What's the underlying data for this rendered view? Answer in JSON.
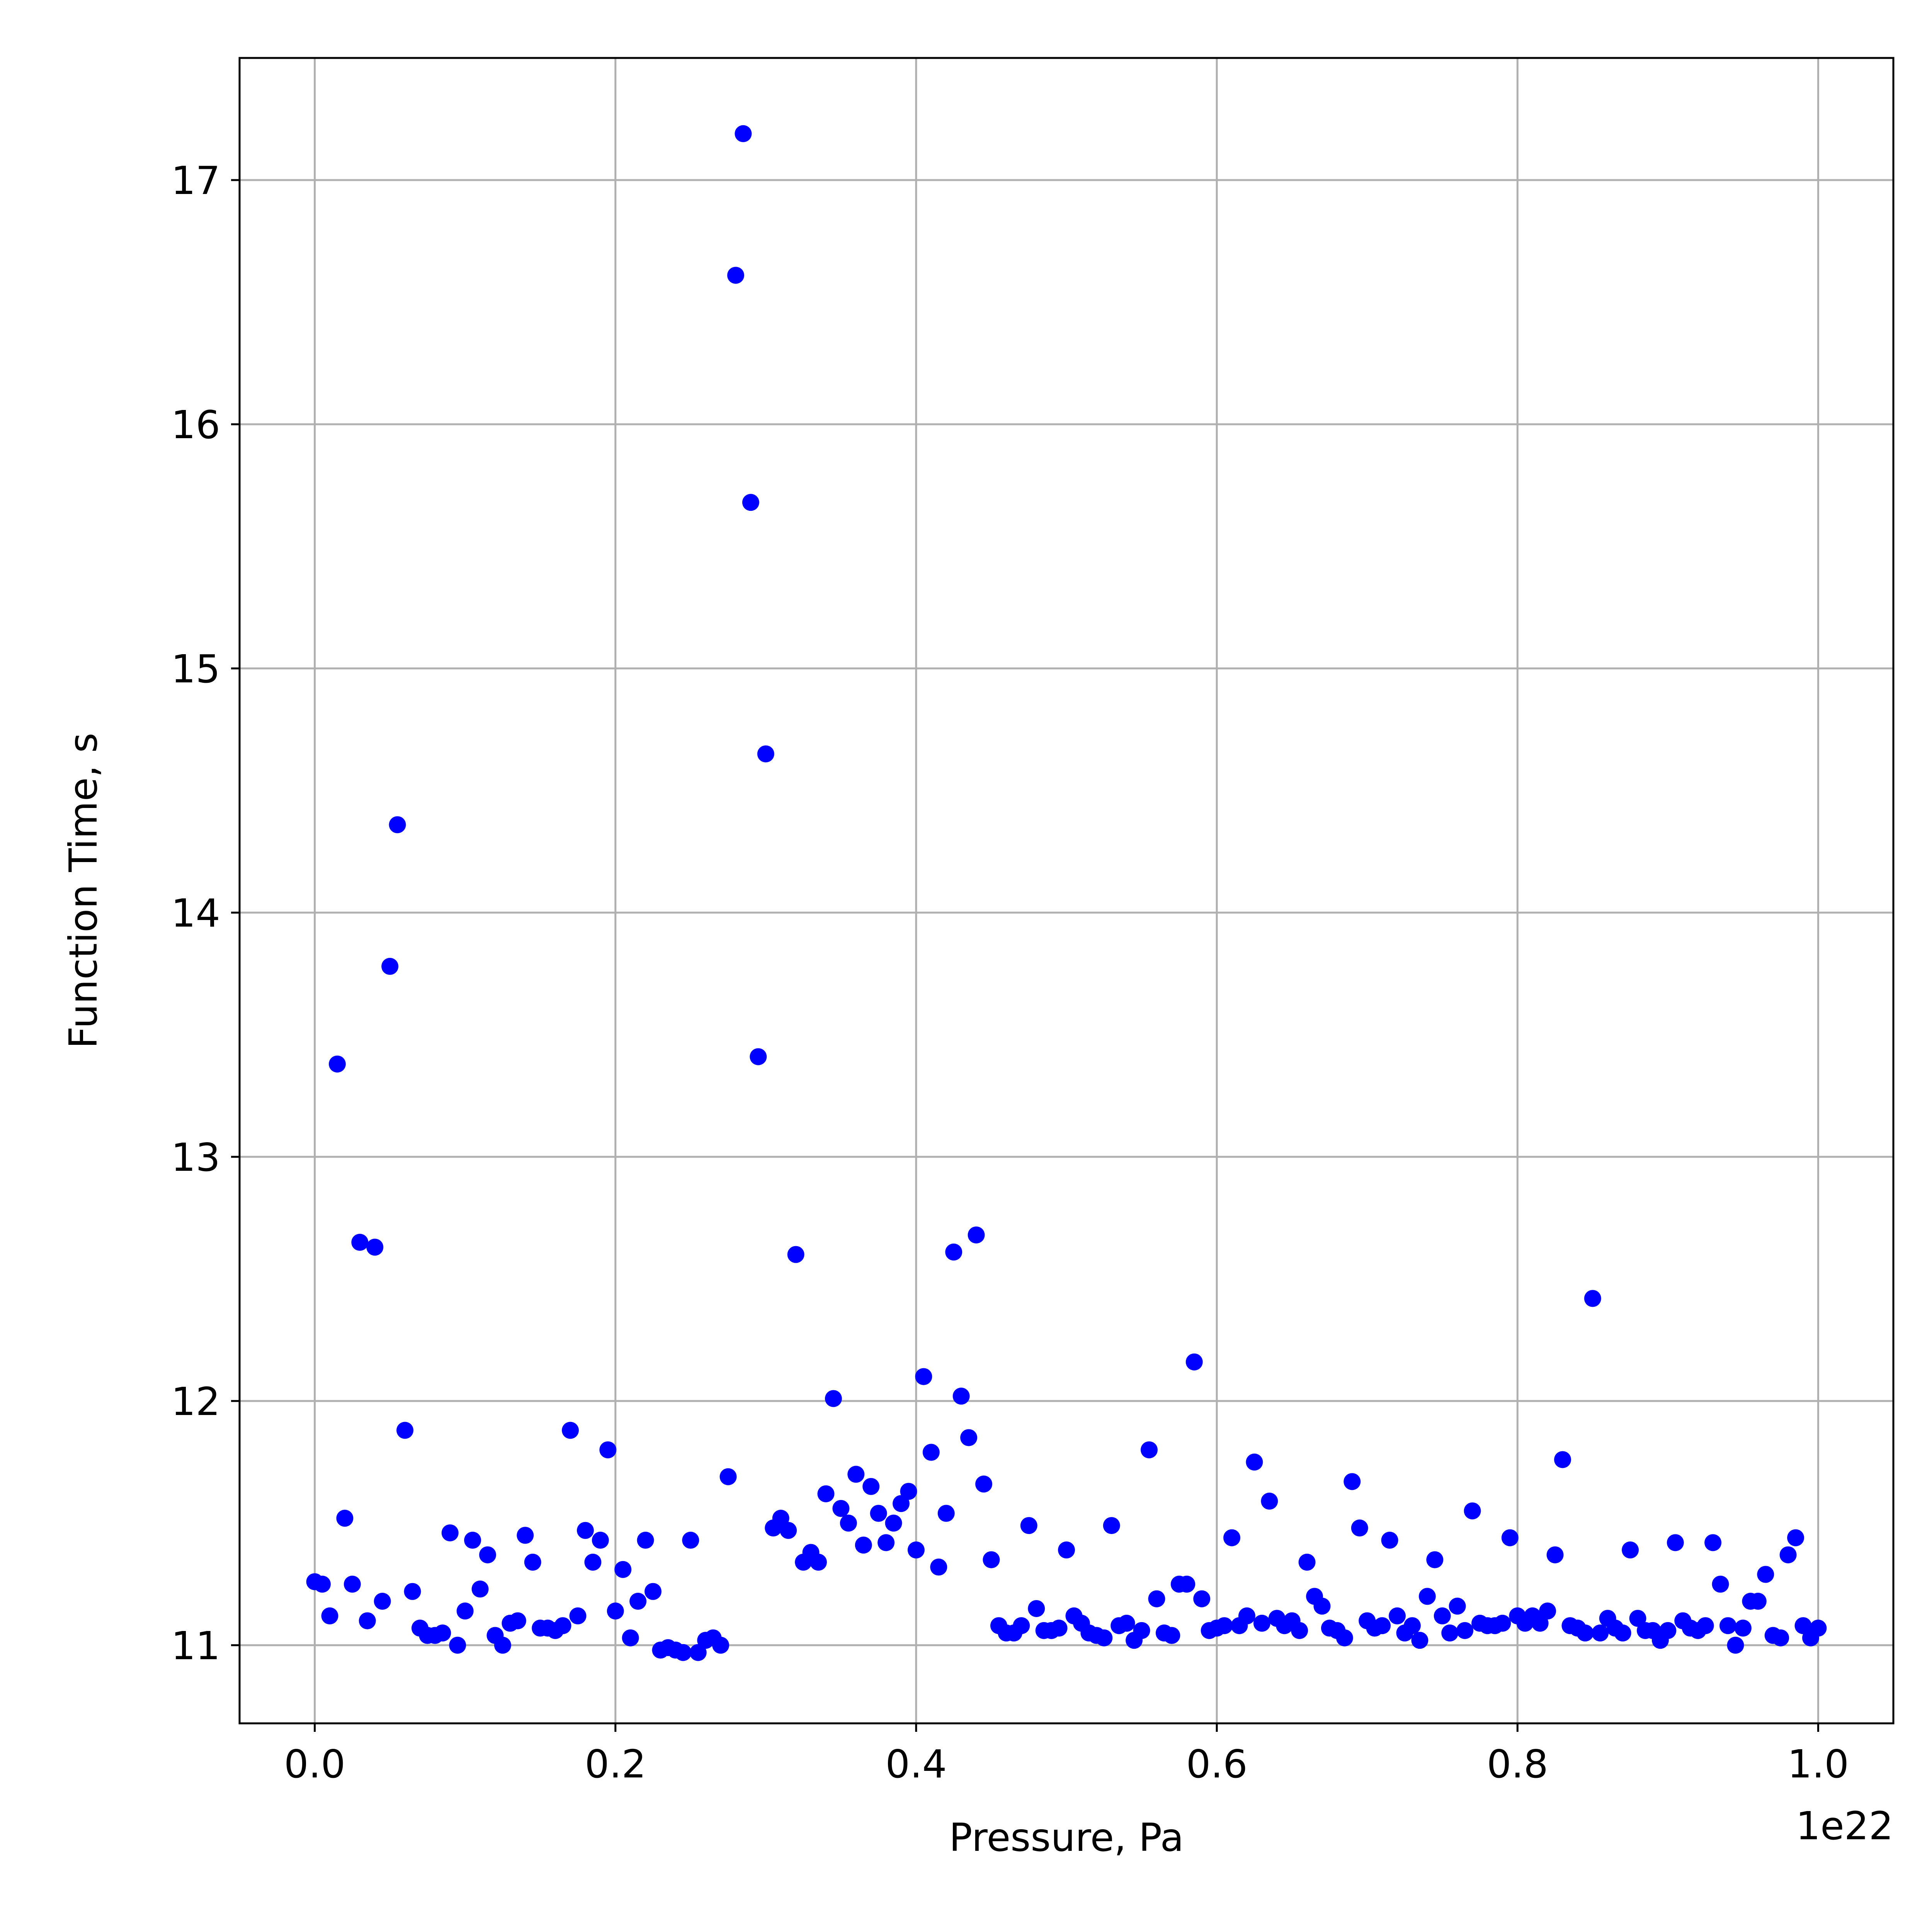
{
  "chart_data": {
    "type": "scatter",
    "xlabel": "Pressure, Pa",
    "ylabel": "Function Time, s",
    "x_offset_label": "1e22",
    "xlim": [
      -0.05,
      1.05
    ],
    "ylim": [
      10.68,
      17.5
    ],
    "x_ticks": [
      0.0,
      0.2,
      0.4,
      0.6,
      0.8,
      1.0
    ],
    "x_tick_labels": [
      "0.0",
      "0.2",
      "0.4",
      "0.6",
      "0.8",
      "1.0"
    ],
    "y_ticks": [
      11,
      12,
      13,
      14,
      15,
      16,
      17
    ],
    "y_tick_labels": [
      "11",
      "12",
      "13",
      "14",
      "15",
      "16",
      "17"
    ],
    "grid": true,
    "legend": "none",
    "marker_color": "#0000ff",
    "grid_color": "#b0b0b0",
    "series": [
      {
        "x": [
          0.0,
          0.005,
          0.01,
          0.015,
          0.02,
          0.025,
          0.03,
          0.035,
          0.04,
          0.045,
          0.05,
          0.055,
          0.06,
          0.065,
          0.07,
          0.075,
          0.08,
          0.085,
          0.09,
          0.095,
          0.1,
          0.105,
          0.11,
          0.115,
          0.12,
          0.125,
          0.13,
          0.135,
          0.14,
          0.145,
          0.15,
          0.155,
          0.16,
          0.165,
          0.17,
          0.175,
          0.18,
          0.185,
          0.19,
          0.195,
          0.2,
          0.205,
          0.21,
          0.215,
          0.22,
          0.225,
          0.23,
          0.235,
          0.24,
          0.245,
          0.25,
          0.255,
          0.26,
          0.265,
          0.27,
          0.275,
          0.28,
          0.285,
          0.29,
          0.295,
          0.3,
          0.305,
          0.31,
          0.315,
          0.32,
          0.325,
          0.33,
          0.335,
          0.34,
          0.345,
          0.35,
          0.355,
          0.36,
          0.365,
          0.37,
          0.375,
          0.38,
          0.385,
          0.39,
          0.395,
          0.4,
          0.405,
          0.41,
          0.415,
          0.42,
          0.425,
          0.43,
          0.435,
          0.44,
          0.445,
          0.45,
          0.455,
          0.46,
          0.465,
          0.47,
          0.475,
          0.48,
          0.485,
          0.49,
          0.495,
          0.5,
          0.505,
          0.51,
          0.515,
          0.52,
          0.525,
          0.53,
          0.535,
          0.54,
          0.545,
          0.55,
          0.555,
          0.56,
          0.565,
          0.57,
          0.575,
          0.58,
          0.585,
          0.59,
          0.595,
          0.6,
          0.605,
          0.61,
          0.615,
          0.62,
          0.625,
          0.63,
          0.635,
          0.64,
          0.645,
          0.65,
          0.655,
          0.66,
          0.665,
          0.67,
          0.675,
          0.68,
          0.685,
          0.69,
          0.695,
          0.7,
          0.705,
          0.71,
          0.715,
          0.72,
          0.725,
          0.73,
          0.735,
          0.74,
          0.745,
          0.75,
          0.755,
          0.76,
          0.765,
          0.77,
          0.775,
          0.78,
          0.785,
          0.79,
          0.795,
          0.8,
          0.805,
          0.81,
          0.815,
          0.82,
          0.825,
          0.83,
          0.835,
          0.84,
          0.845,
          0.85,
          0.855,
          0.86,
          0.865,
          0.87,
          0.875,
          0.88,
          0.885,
          0.89,
          0.895,
          0.9,
          0.905,
          0.91,
          0.915,
          0.92,
          0.925,
          0.93,
          0.935,
          0.94,
          0.945,
          0.95,
          0.955,
          0.96,
          0.965,
          0.97,
          0.975,
          0.98,
          0.985,
          0.99,
          0.995,
          1.0
        ],
        "y": [
          11.26,
          11.25,
          11.12,
          13.38,
          11.52,
          11.25,
          12.65,
          11.1,
          12.63,
          11.18,
          13.78,
          14.36,
          11.88,
          11.22,
          11.07,
          11.04,
          11.04,
          11.05,
          11.46,
          11.0,
          11.14,
          11.43,
          11.23,
          11.37,
          11.04,
          11.0,
          11.09,
          11.1,
          11.45,
          11.34,
          11.07,
          11.07,
          11.06,
          11.08,
          11.88,
          11.12,
          11.47,
          11.34,
          11.43,
          11.8,
          11.14,
          11.31,
          11.03,
          11.18,
          11.43,
          11.22,
          10.98,
          10.99,
          10.98,
          10.97,
          11.43,
          10.97,
          11.02,
          11.03,
          11.0,
          11.69,
          16.61,
          17.19,
          15.68,
          13.41,
          14.65,
          11.48,
          11.52,
          11.47,
          12.6,
          11.34,
          11.38,
          11.34,
          11.62,
          12.01,
          11.56,
          11.5,
          11.7,
          11.41,
          11.65,
          11.54,
          11.42,
          11.5,
          11.58,
          11.63,
          11.39,
          12.1,
          11.79,
          11.32,
          11.54,
          12.61,
          12.02,
          11.85,
          12.68,
          11.66,
          11.35,
          11.08,
          11.05,
          11.05,
          11.08,
          11.49,
          11.15,
          11.06,
          11.06,
          11.07,
          11.39,
          11.12,
          11.09,
          11.05,
          11.04,
          11.03,
          11.49,
          11.08,
          11.09,
          11.02,
          11.06,
          11.8,
          11.19,
          11.05,
          11.04,
          11.25,
          11.25,
          12.16,
          11.19,
          11.06,
          11.07,
          11.08,
          11.44,
          11.08,
          11.12,
          11.75,
          11.09,
          11.59,
          11.11,
          11.08,
          11.1,
          11.06,
          11.34,
          11.2,
          11.16,
          11.07,
          11.06,
          11.03,
          11.67,
          11.48,
          11.1,
          11.07,
          11.08,
          11.43,
          11.12,
          11.05,
          11.08,
          11.02,
          11.2,
          11.35,
          11.12,
          11.05,
          11.16,
          11.06,
          11.55,
          11.09,
          11.08,
          11.08,
          11.09,
          11.44,
          11.12,
          11.09,
          11.12,
          11.09,
          11.14,
          11.37,
          11.76,
          11.08,
          11.07,
          11.05,
          12.42,
          11.05,
          11.11,
          11.07,
          11.05,
          11.39,
          11.11,
          11.06,
          11.06,
          11.02,
          11.06,
          11.42,
          11.1,
          11.07,
          11.06,
          11.08,
          11.42,
          11.25,
          11.08,
          11.0,
          11.07,
          11.18,
          11.18,
          11.29,
          11.04,
          11.03,
          11.37,
          11.44,
          11.08,
          11.03,
          11.07
        ]
      }
    ]
  }
}
